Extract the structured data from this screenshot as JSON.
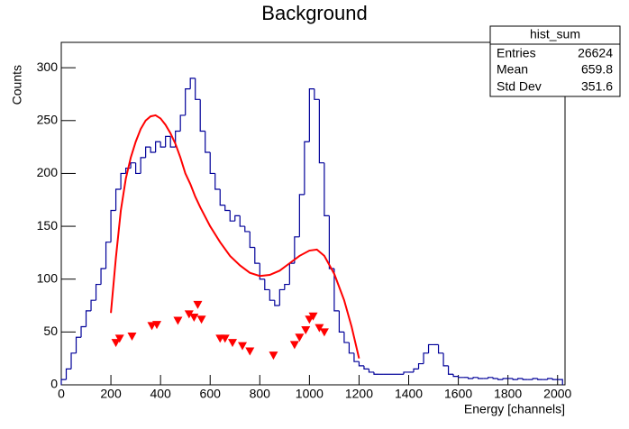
{
  "chart_data": {
    "type": "histogram",
    "title": "Background",
    "x_label": "Energy [channels]",
    "y_label": "Counts",
    "bins": [
      0,
      20,
      40,
      60,
      80,
      100,
      120,
      140,
      160,
      180,
      200,
      220,
      240,
      260,
      280,
      300,
      320,
      340,
      360,
      380,
      400,
      420,
      440,
      460,
      480,
      500,
      520,
      540,
      560,
      580,
      600,
      620,
      640,
      660,
      680,
      700,
      720,
      740,
      760,
      780,
      800,
      820,
      840,
      860,
      880,
      900,
      920,
      940,
      960,
      980,
      1000,
      1020,
      1040,
      1060,
      1080,
      1100,
      1120,
      1140,
      1160,
      1180,
      1200,
      1220,
      1240,
      1260,
      1280,
      1300,
      1320,
      1340,
      1360,
      1380,
      1400,
      1420,
      1440,
      1460,
      1480,
      1500,
      1520,
      1540,
      1560,
      1580,
      1600,
      1620,
      1640,
      1660,
      1680,
      1700,
      1720,
      1740,
      1760,
      1780,
      1800,
      1820,
      1840,
      1860,
      1880,
      1900,
      1920,
      1940,
      1960,
      1980,
      2000,
      2020
    ],
    "values": [
      5,
      15,
      30,
      45,
      55,
      70,
      80,
      95,
      110,
      135,
      165,
      185,
      200,
      205,
      210,
      200,
      215,
      225,
      220,
      230,
      225,
      235,
      225,
      240,
      255,
      280,
      290,
      270,
      240,
      220,
      200,
      185,
      170,
      165,
      155,
      160,
      150,
      145,
      130,
      115,
      100,
      90,
      80,
      75,
      90,
      95,
      115,
      140,
      180,
      230,
      280,
      270,
      210,
      160,
      110,
      70,
      50,
      40,
      30,
      22,
      18,
      15,
      12,
      10,
      10,
      10,
      10,
      10,
      10,
      12,
      12,
      15,
      20,
      30,
      38,
      38,
      30,
      18,
      10,
      8,
      7,
      7,
      6,
      7,
      6,
      6,
      7,
      6,
      5,
      6,
      6,
      5,
      6,
      5,
      5,
      6,
      5,
      5,
      6,
      5,
      5
    ],
    "color": "#000099",
    "xlim": [
      0,
      2030
    ],
    "ylim": [
      0,
      324
    ],
    "xticks": [
      0,
      200,
      400,
      600,
      800,
      1000,
      1200,
      1400,
      1600,
      1800,
      2000
    ],
    "yticks": [
      0,
      50,
      100,
      150,
      200,
      250,
      300
    ],
    "overlays": [
      {
        "type": "line",
        "color": "#ff0000",
        "x": [
          200,
          220,
          240,
          260,
          280,
          300,
          320,
          340,
          360,
          380,
          400,
          420,
          440,
          460,
          480,
          500,
          520,
          540,
          560,
          600,
          640,
          680,
          720,
          760,
          800,
          840,
          880,
          920,
          960,
          1000,
          1030,
          1060,
          1100,
          1140,
          1170,
          1200
        ],
        "values": [
          68,
          120,
          165,
          195,
          215,
          230,
          242,
          250,
          254,
          255,
          252,
          246,
          238,
          228,
          215,
          200,
          190,
          178,
          168,
          150,
          135,
          122,
          113,
          106,
          103,
          104,
          108,
          115,
          122,
          127,
          128,
          122,
          105,
          80,
          55,
          25
        ]
      },
      {
        "type": "scatter",
        "color": "#ff0000",
        "x": [
          220,
          235,
          285,
          365,
          385,
          470,
          515,
          535,
          550,
          565,
          640,
          660,
          690,
          730,
          760,
          855,
          940,
          960,
          985,
          1000,
          1015,
          1040,
          1060
        ],
        "values": [
          40,
          44,
          46,
          56,
          57,
          61,
          67,
          64,
          76,
          62,
          44,
          44,
          40,
          37,
          32,
          28,
          38,
          45,
          52,
          62,
          65,
          54,
          50
        ]
      }
    ]
  },
  "stats": {
    "title": "hist_sum",
    "rows": [
      {
        "label": "Entries",
        "value": 26624
      },
      {
        "label": "Mean",
        "value": 659.8
      },
      {
        "label": "Std Dev",
        "value": 351.6
      }
    ]
  }
}
